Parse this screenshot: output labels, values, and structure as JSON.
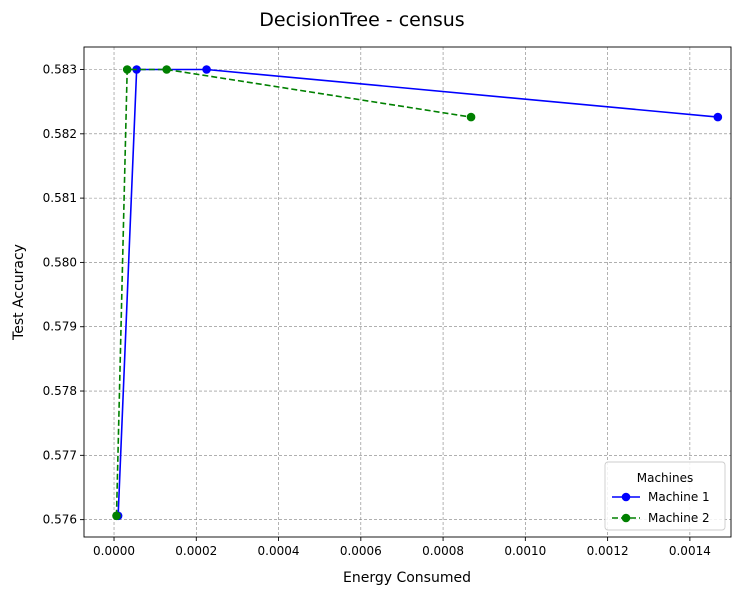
{
  "chart_data": {
    "type": "line",
    "title": "DecisionTree - census",
    "xlabel": "Energy Consumed",
    "ylabel": "Test Accuracy",
    "xlim": [
      -7.3e-05,
      0.0015
    ],
    "ylim": [
      0.57573,
      0.58335
    ],
    "xticks": [
      0.0,
      0.0002,
      0.0004,
      0.0006,
      0.0008,
      0.001,
      0.0012,
      0.0014
    ],
    "xtick_labels": [
      "0.0000",
      "0.0002",
      "0.0004",
      "0.0006",
      "0.0008",
      "0.0010",
      "0.0012",
      "0.0014"
    ],
    "yticks": [
      0.576,
      0.577,
      0.578,
      0.579,
      0.58,
      0.581,
      0.582,
      0.583
    ],
    "ytick_labels": [
      "0.576",
      "0.577",
      "0.578",
      "0.579",
      "0.580",
      "0.581",
      "0.582",
      "0.583"
    ],
    "grid": true,
    "legend": {
      "title": "Machines",
      "position": "lower-right"
    },
    "series": [
      {
        "name": "Machine 1",
        "color": "#0000ff",
        "linestyle": "solid",
        "marker": "circle",
        "points": [
          {
            "x": 1e-05,
            "y": 0.57606
          },
          {
            "x": 5.5e-05,
            "y": 0.583
          },
          {
            "x": 0.000225,
            "y": 0.583
          },
          {
            "x": 0.001468,
            "y": 0.58226
          }
        ]
      },
      {
        "name": "Machine 2",
        "color": "#008000",
        "linestyle": "dashed",
        "marker": "circle",
        "points": [
          {
            "x": 6e-06,
            "y": 0.57606
          },
          {
            "x": 3.2e-05,
            "y": 0.583
          },
          {
            "x": 0.000128,
            "y": 0.583
          },
          {
            "x": 0.000868,
            "y": 0.58226
          }
        ]
      }
    ]
  }
}
